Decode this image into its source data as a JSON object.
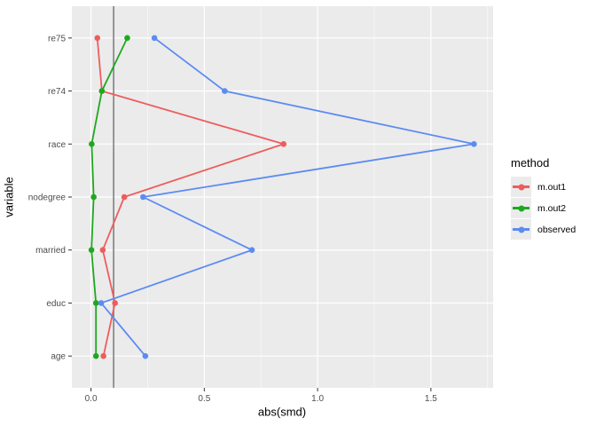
{
  "chart_data": {
    "type": "line",
    "orientation": "horizontal",
    "title": "",
    "xlabel": "abs(smd)",
    "ylabel": "variable",
    "categories": [
      "re75",
      "re74",
      "race",
      "nodegree",
      "married",
      "educ",
      "age"
    ],
    "series": [
      {
        "name": "m.out1",
        "color": "#EE5D5D",
        "values": [
          0.028,
          0.048,
          0.85,
          0.147,
          0.052,
          0.106,
          0.055
        ]
      },
      {
        "name": "m.out2",
        "color": "#1FA81F",
        "values": [
          0.16,
          0.048,
          0.003,
          0.012,
          0.002,
          0.022,
          0.022
        ]
      },
      {
        "name": "observed",
        "color": "#5C8BF2",
        "values": [
          0.28,
          0.59,
          1.69,
          0.23,
          0.71,
          0.045,
          0.24
        ]
      }
    ],
    "x_ticks": [
      0,
      0.5,
      1,
      1.5
    ],
    "x_tick_labels": [
      "0.0",
      "0.5",
      "1.0",
      "1.5"
    ],
    "x_minor_ticks": [
      0.25,
      0.75,
      1.25,
      1.75
    ],
    "xlim": [
      -0.0845,
      1.7745
    ],
    "ref_line_x": 0.1,
    "grid": true,
    "legend": {
      "title": "method",
      "position": "right",
      "entries": [
        "m.out1",
        "m.out2",
        "observed"
      ]
    },
    "style": {
      "panel_bg": "#EBEBEB",
      "grid_color": "#FFFFFF",
      "ref_line_color": "#808080",
      "tick_color": "#333333",
      "tick_label_color": "#4D4D4D",
      "axis_title_color": "#000000",
      "legend_key_bg": "#EBEBEB"
    }
  }
}
